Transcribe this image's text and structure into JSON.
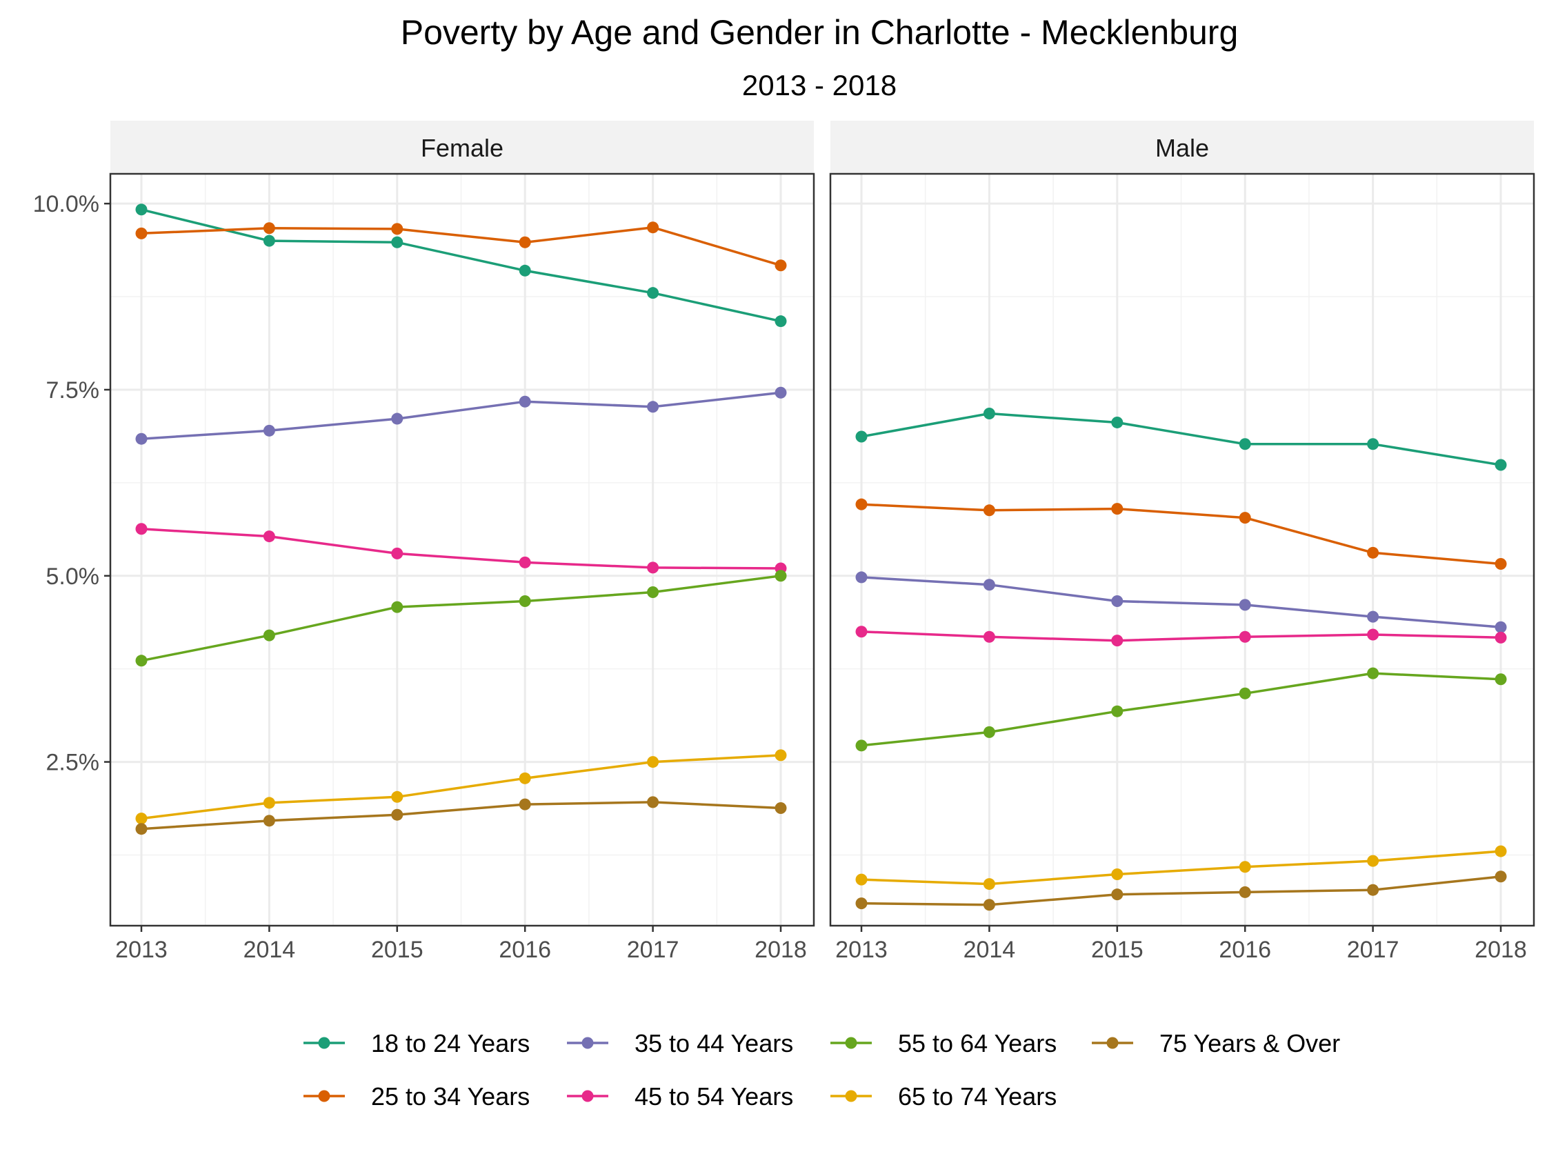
{
  "chart_data": {
    "type": "line",
    "title": "Poverty by Age and Gender in Charlotte - Mecklenburg",
    "subtitle": "2013 - 2018",
    "xlabel": "",
    "ylabel": "",
    "x": [
      2013,
      2014,
      2015,
      2016,
      2017,
      2018
    ],
    "x_tick_labels": [
      "2013",
      "2014",
      "2015",
      "2016",
      "2017",
      "2018"
    ],
    "ylim": [
      0.3,
      10.4
    ],
    "y_ticks": [
      2.5,
      5.0,
      7.5,
      10.0
    ],
    "y_tick_labels": [
      "2.5%",
      "5.0%",
      "7.5%",
      "10.0%"
    ],
    "grid": true,
    "legend_position": "bottom",
    "facets": [
      "Female",
      "Male"
    ],
    "colors": {
      "18 to 24 Years": "#1b9e77",
      "25 to 34 Years": "#d95f02",
      "35 to 44 Years": "#7570b3",
      "45 to 54 Years": "#e7298a",
      "55 to 64 Years": "#66a61e",
      "65 to 74 Years": "#e6ab02",
      "75 Years & Over": "#a6761d"
    },
    "legend_rows": [
      [
        "18 to 24 Years",
        "35 to 44 Years",
        "55 to 64 Years",
        "75 Years & Over"
      ],
      [
        "25 to 34 Years",
        "45 to 54 Years",
        "65 to 74 Years"
      ]
    ],
    "series": [
      {
        "name": "18 to 24 Years",
        "facet": "Female",
        "values": [
          9.92,
          9.5,
          9.48,
          9.1,
          8.8,
          8.42
        ]
      },
      {
        "name": "25 to 34 Years",
        "facet": "Female",
        "values": [
          9.6,
          9.67,
          9.66,
          9.48,
          9.68,
          9.17
        ]
      },
      {
        "name": "35 to 44 Years",
        "facet": "Female",
        "values": [
          6.84,
          6.95,
          7.11,
          7.34,
          7.27,
          7.46
        ]
      },
      {
        "name": "45 to 54 Years",
        "facet": "Female",
        "values": [
          5.63,
          5.53,
          5.3,
          5.18,
          5.11,
          5.1
        ]
      },
      {
        "name": "55 to 64 Years",
        "facet": "Female",
        "values": [
          3.86,
          4.2,
          4.58,
          4.66,
          4.78,
          5.0
        ]
      },
      {
        "name": "65 to 74 Years",
        "facet": "Female",
        "values": [
          1.74,
          1.95,
          2.03,
          2.28,
          2.5,
          2.59
        ]
      },
      {
        "name": "75 Years & Over",
        "facet": "Female",
        "values": [
          1.6,
          1.71,
          1.79,
          1.93,
          1.96,
          1.88
        ]
      },
      {
        "name": "18 to 24 Years",
        "facet": "Male",
        "values": [
          6.87,
          7.18,
          7.06,
          6.77,
          6.77,
          6.49
        ]
      },
      {
        "name": "25 to 34 Years",
        "facet": "Male",
        "values": [
          5.96,
          5.88,
          5.9,
          5.78,
          5.31,
          5.16
        ]
      },
      {
        "name": "35 to 44 Years",
        "facet": "Male",
        "values": [
          4.98,
          4.88,
          4.66,
          4.61,
          4.45,
          4.31
        ]
      },
      {
        "name": "45 to 54 Years",
        "facet": "Male",
        "values": [
          4.25,
          4.18,
          4.13,
          4.18,
          4.21,
          4.17
        ]
      },
      {
        "name": "55 to 64 Years",
        "facet": "Male",
        "values": [
          2.72,
          2.9,
          3.18,
          3.42,
          3.69,
          3.61
        ]
      },
      {
        "name": "65 to 74 Years",
        "facet": "Male",
        "values": [
          0.92,
          0.86,
          0.99,
          1.09,
          1.17,
          1.3
        ]
      },
      {
        "name": "75 Years & Over",
        "facet": "Male",
        "values": [
          0.6,
          0.58,
          0.72,
          0.75,
          0.78,
          0.96
        ]
      }
    ]
  }
}
